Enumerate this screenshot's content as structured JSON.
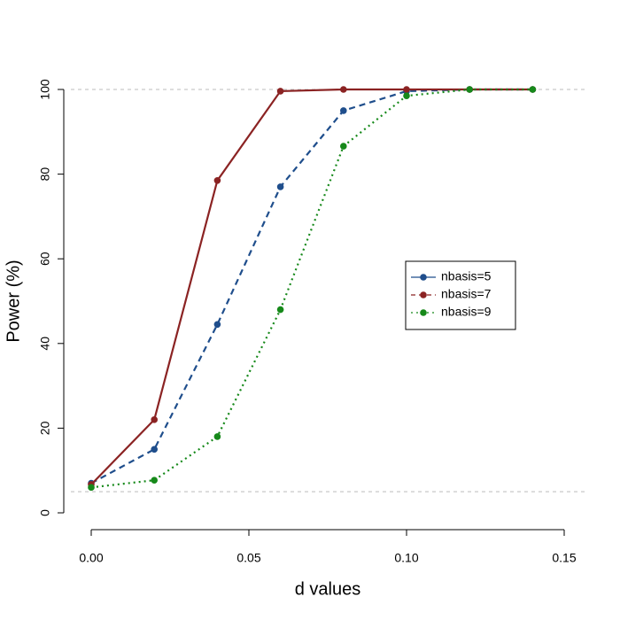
{
  "chart_data": {
    "type": "line",
    "xlabel": "d values",
    "ylabel": "Power (%)",
    "x": [
      0,
      0.02,
      0.04,
      0.06,
      0.08,
      0.1,
      0.12,
      0.14
    ],
    "series": [
      {
        "name": "nbasis=5",
        "color": "#1f4e8c",
        "dash": "7,5",
        "legend_dash": "none",
        "values": [
          7,
          15,
          44.5,
          77,
          95,
          99.6,
          100,
          100
        ]
      },
      {
        "name": "nbasis=7",
        "color": "#8b2323",
        "dash": "none",
        "legend_dash": "5,4",
        "values": [
          6.7,
          22,
          78.5,
          99.6,
          100,
          100,
          100,
          100
        ]
      },
      {
        "name": "nbasis=9",
        "color": "#16891a",
        "dash": "2,4",
        "legend_dash": "2,4",
        "values": [
          6,
          7.7,
          18,
          48,
          86.6,
          98.5,
          100,
          100
        ]
      }
    ],
    "xlim": [
      0,
      0.15
    ],
    "xticks": [
      {
        "value": 0,
        "label": "0.00"
      },
      {
        "value": 0.05,
        "label": "0.05"
      },
      {
        "value": 0.1,
        "label": "0.10"
      },
      {
        "value": 0.15,
        "label": "0.15"
      }
    ],
    "ylim": [
      0,
      100
    ],
    "yticks": [
      0,
      20,
      40,
      60,
      80,
      100
    ],
    "reference_lines": [
      5,
      100
    ],
    "legend": "right"
  }
}
